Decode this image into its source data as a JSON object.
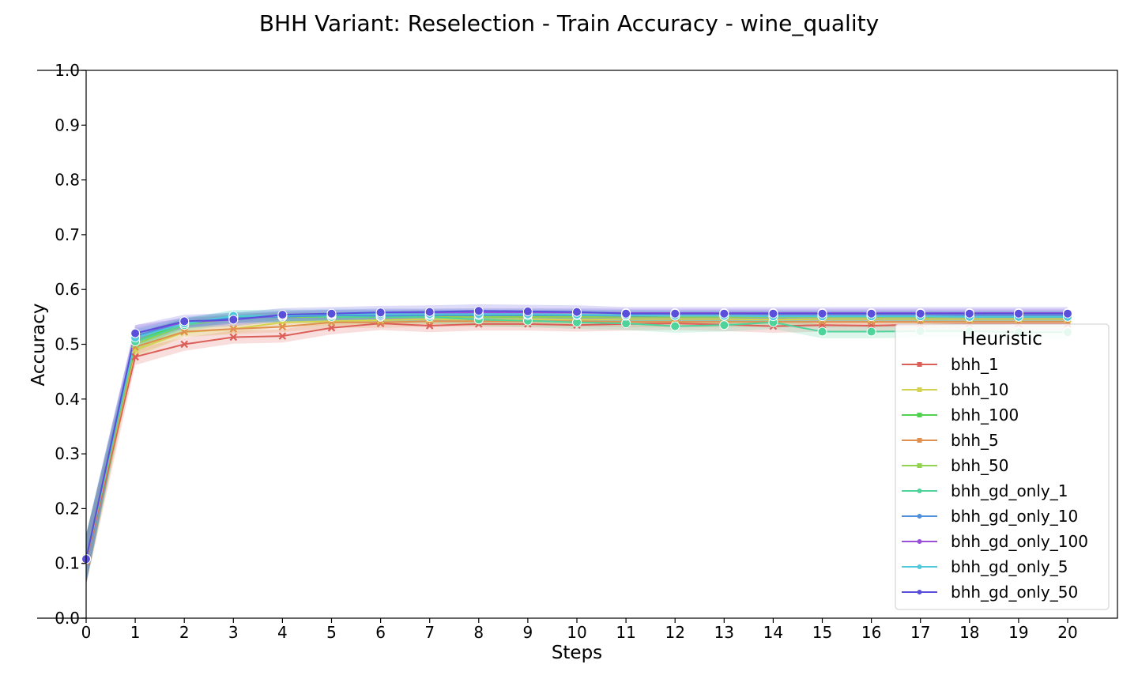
{
  "chart_data": {
    "type": "line",
    "title": "BHH Variant: Reselection - Train Accuracy - wine_quality",
    "xlabel": "Steps",
    "ylabel": "Accuracy",
    "xlim": [
      0,
      21
    ],
    "ylim": [
      0.0,
      1.0
    ],
    "x": [
      0,
      1,
      2,
      3,
      4,
      5,
      6,
      7,
      8,
      9,
      10,
      11,
      12,
      13,
      14,
      15,
      16,
      17,
      18,
      19,
      20
    ],
    "xticks": [
      "0",
      "1",
      "2",
      "3",
      "4",
      "5",
      "6",
      "7",
      "8",
      "9",
      "10",
      "11",
      "12",
      "13",
      "14",
      "15",
      "16",
      "17",
      "18",
      "19",
      "20"
    ],
    "yticks": [
      "0.0",
      "0.1",
      "0.2",
      "0.3",
      "0.4",
      "0.5",
      "0.6",
      "0.7",
      "0.8",
      "0.9",
      "1.0"
    ],
    "grid": false,
    "legend": {
      "title": "Heuristic",
      "placement": "lower-right"
    },
    "series": [
      {
        "name": "bhh_1",
        "color": "#db5f57",
        "marker": "x",
        "band": 0.012,
        "values": [
          0.105,
          0.477,
          0.5,
          0.513,
          0.515,
          0.53,
          0.538,
          0.534,
          0.537,
          0.537,
          0.535,
          0.537,
          0.538,
          0.536,
          0.533,
          0.535,
          0.534,
          0.536,
          0.537,
          0.537,
          0.537
        ]
      },
      {
        "name": "bhh_10",
        "color": "#d3d34f",
        "marker": "x",
        "band": 0.008,
        "values": [
          0.108,
          0.49,
          0.522,
          0.528,
          0.54,
          0.542,
          0.544,
          0.546,
          0.545,
          0.546,
          0.545,
          0.546,
          0.546,
          0.546,
          0.545,
          0.546,
          0.546,
          0.546,
          0.546,
          0.546,
          0.546
        ]
      },
      {
        "name": "bhh_100",
        "color": "#4fd34f",
        "marker": "x",
        "band": 0.008,
        "values": [
          0.108,
          0.505,
          0.54,
          0.548,
          0.55,
          0.55,
          0.55,
          0.552,
          0.552,
          0.552,
          0.552,
          0.552,
          0.552,
          0.552,
          0.552,
          0.552,
          0.552,
          0.552,
          0.552,
          0.552,
          0.552
        ]
      },
      {
        "name": "bhh_5",
        "color": "#e08f4f",
        "marker": "x",
        "band": 0.01,
        "values": [
          0.106,
          0.495,
          0.523,
          0.528,
          0.532,
          0.54,
          0.54,
          0.542,
          0.542,
          0.542,
          0.542,
          0.541,
          0.541,
          0.541,
          0.541,
          0.541,
          0.541,
          0.541,
          0.541,
          0.541,
          0.541
        ]
      },
      {
        "name": "bhh_50",
        "color": "#8fd34f",
        "marker": "x",
        "band": 0.008,
        "values": [
          0.108,
          0.5,
          0.535,
          0.548,
          0.55,
          0.55,
          0.55,
          0.55,
          0.55,
          0.55,
          0.55,
          0.55,
          0.55,
          0.55,
          0.55,
          0.55,
          0.55,
          0.55,
          0.55,
          0.55,
          0.55
        ]
      },
      {
        "name": "bhh_gd_only_1",
        "color": "#4fd39b",
        "marker": "o",
        "band": 0.012,
        "values": [
          0.108,
          0.505,
          0.535,
          0.55,
          0.552,
          0.55,
          0.55,
          0.55,
          0.545,
          0.543,
          0.54,
          0.538,
          0.533,
          0.535,
          0.54,
          0.523,
          0.523,
          0.524,
          0.524,
          0.522,
          0.522
        ]
      },
      {
        "name": "bhh_gd_only_10",
        "color": "#4f8fdb",
        "marker": "o",
        "band": 0.01,
        "values": [
          0.108,
          0.515,
          0.54,
          0.548,
          0.55,
          0.553,
          0.552,
          0.553,
          0.553,
          0.553,
          0.553,
          0.552,
          0.552,
          0.552,
          0.552,
          0.552,
          0.552,
          0.552,
          0.552,
          0.552,
          0.552
        ]
      },
      {
        "name": "bhh_gd_only_100",
        "color": "#9b4fdb",
        "marker": "o",
        "band": 0.008,
        "values": [
          0.108,
          0.52,
          0.54,
          0.545,
          0.553,
          0.555,
          0.557,
          0.557,
          0.558,
          0.558,
          0.558,
          0.557,
          0.557,
          0.557,
          0.557,
          0.557,
          0.557,
          0.557,
          0.557,
          0.557,
          0.557
        ]
      },
      {
        "name": "bhh_gd_only_5",
        "color": "#4fc9db",
        "marker": "o",
        "band": 0.01,
        "values": [
          0.108,
          0.512,
          0.538,
          0.552,
          0.552,
          0.555,
          0.555,
          0.555,
          0.555,
          0.555,
          0.554,
          0.553,
          0.552,
          0.552,
          0.551,
          0.551,
          0.551,
          0.551,
          0.55,
          0.55,
          0.55
        ]
      },
      {
        "name": "bhh_gd_only_50",
        "color": "#5a4fdb",
        "marker": "o",
        "band": 0.012,
        "values": [
          0.108,
          0.52,
          0.542,
          0.545,
          0.554,
          0.556,
          0.558,
          0.559,
          0.561,
          0.56,
          0.559,
          0.556,
          0.556,
          0.556,
          0.556,
          0.556,
          0.556,
          0.556,
          0.556,
          0.556,
          0.556
        ]
      }
    ]
  }
}
